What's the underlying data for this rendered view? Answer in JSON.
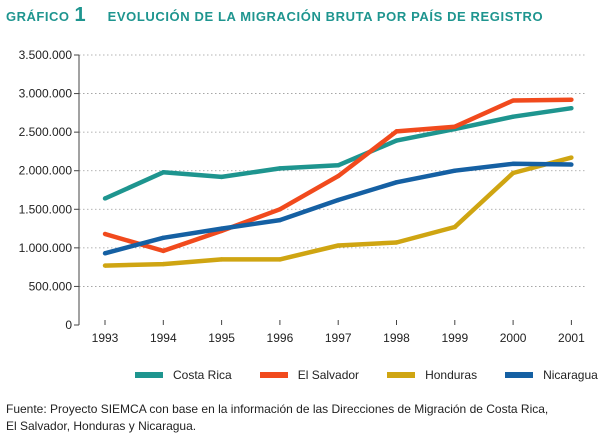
{
  "header": {
    "label": "GRÁFICO",
    "number": "1",
    "title": "EVOLUCIÓN DE LA MIGRACIÓN BRUTA POR PAÍS DE REGISTRO"
  },
  "chart_data": {
    "type": "line",
    "title": "EVOLUCIÓN DE LA MIGRACIÓN BRUTA POR PAÍS DE REGISTRO",
    "xlabel": "",
    "ylabel": "",
    "x": [
      "1993",
      "1994",
      "1995",
      "1996",
      "1997",
      "1998",
      "1999",
      "2000",
      "2001"
    ],
    "ylim": [
      0,
      3500000
    ],
    "yticks": [
      0,
      500000,
      1000000,
      1500000,
      2000000,
      2500000,
      3000000,
      3500000
    ],
    "ytick_labels": [
      "0",
      "500.000",
      "1.000.000",
      "1.500.000",
      "2.000.000",
      "2.500.000",
      "3.000.000",
      "3.500.000"
    ],
    "grid": "horizontal dotted",
    "legend_position": "bottom",
    "series": [
      {
        "name": "Costa Rica",
        "color": "#1e958f",
        "values": [
          1640000,
          1980000,
          1920000,
          2030000,
          2070000,
          2390000,
          2540000,
          2700000,
          2810000
        ]
      },
      {
        "name": "El Salvador",
        "color": "#f14a1d",
        "values": [
          1180000,
          960000,
          1220000,
          1500000,
          1930000,
          2510000,
          2570000,
          2910000,
          2920000
        ]
      },
      {
        "name": "Honduras",
        "color": "#cfa512",
        "values": [
          770000,
          790000,
          850000,
          850000,
          1030000,
          1070000,
          1270000,
          1970000,
          2170000
        ]
      },
      {
        "name": "Nicaragua",
        "color": "#1560a3",
        "values": [
          930000,
          1130000,
          1250000,
          1360000,
          1620000,
          1850000,
          2000000,
          2090000,
          2080000
        ]
      }
    ]
  },
  "source": {
    "line1": "Fuente: Proyecto SIEMCA con base en la información de las Direcciones de Migración de Costa Rica,",
    "line2": "El Salvador, Honduras y Nicaragua."
  }
}
